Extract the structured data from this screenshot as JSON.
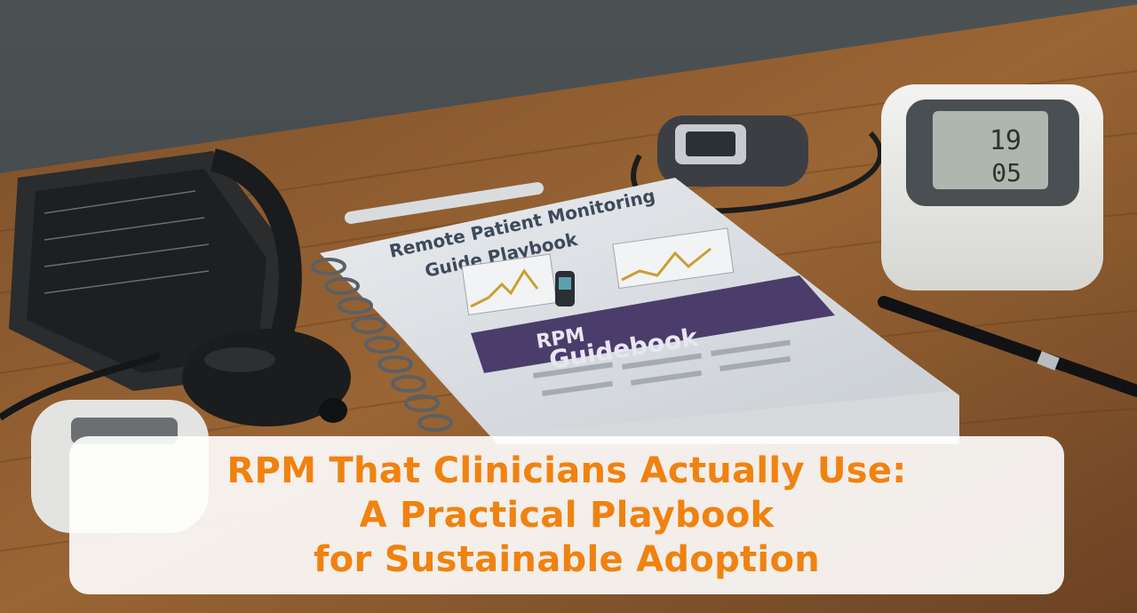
{
  "book": {
    "title_line1": "Remote Patient Monitoring",
    "title_line2": "Guide Playbook",
    "banner_word1": "RPM",
    "banner_word2": "Guidebook"
  },
  "monitor": {
    "reading_top": "19",
    "reading_bottom": "05"
  },
  "overlay": {
    "title_lines": [
      "RPM That Clinicians Actually Use:",
      "A Practical Playbook",
      "for Sustainable Adoption"
    ]
  },
  "colors": {
    "title_orange": "#f0820f",
    "book_banner_purple": "#4a3d6b",
    "desk_wood": "#8a5a30",
    "wall_gray": "#4a4e50"
  }
}
